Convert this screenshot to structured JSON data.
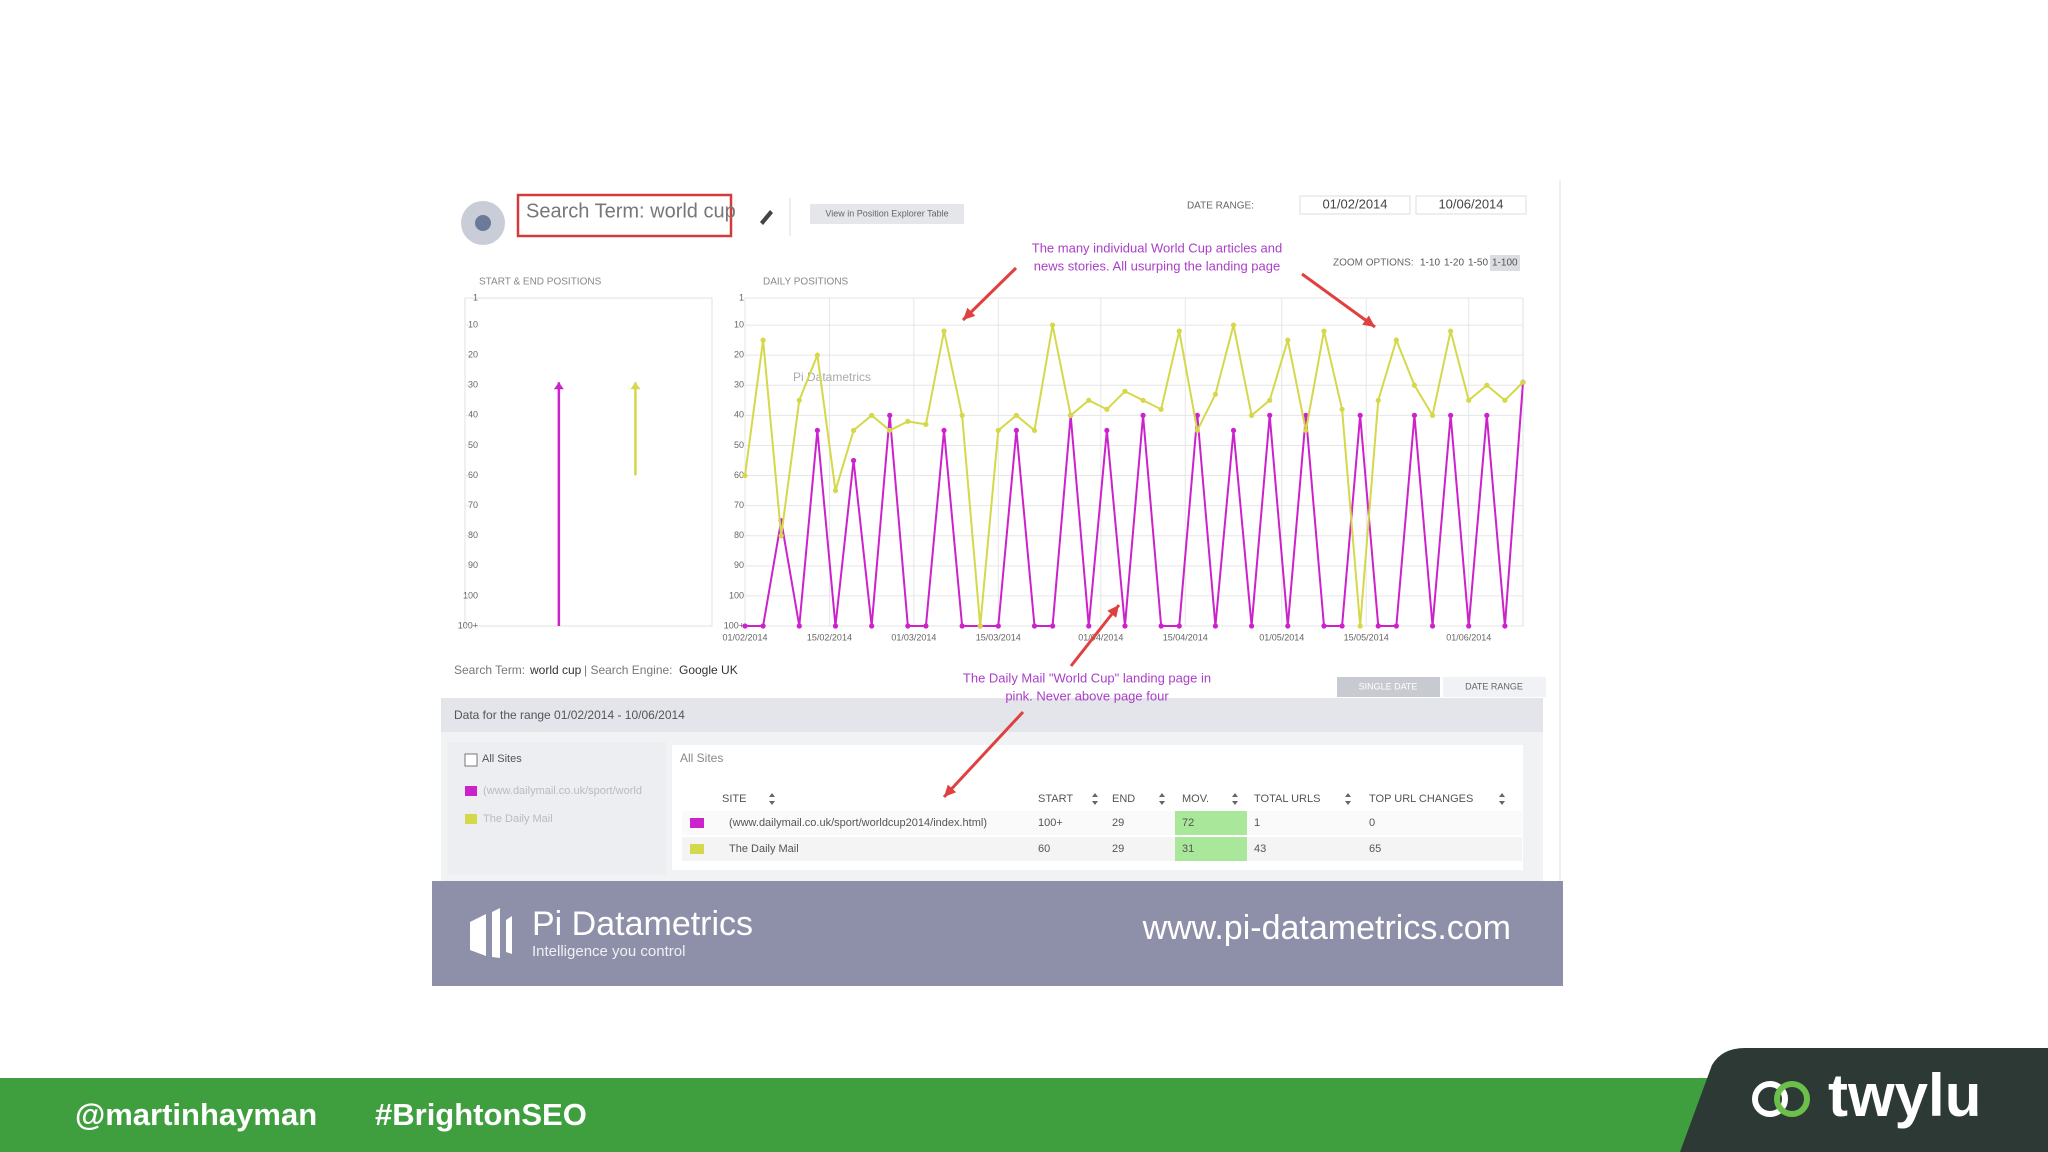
{
  "header": {
    "search_term": "Search Term: world cup",
    "table_button": "View in Position Explorer Table",
    "date_range_label": "DATE RANGE:",
    "date_from": "01/02/2014",
    "date_to": "10/06/2014",
    "zoom_label": "ZOOM OPTIONS:",
    "zoom_options": [
      "1-10",
      "1-20",
      "1-50",
      "1-100"
    ]
  },
  "chart_data": [
    {
      "type": "range",
      "title": "START & END POSITIONS",
      "ylim": [
        1,
        110
      ],
      "y_inverted": true,
      "yticks": [
        1,
        10,
        20,
        30,
        40,
        50,
        60,
        70,
        80,
        90,
        100,
        {
          "value": 110,
          "label": "100+"
        }
      ],
      "grid": false,
      "series": [
        {
          "color": "#cc22cc",
          "values": [
            110,
            29
          ]
        },
        {
          "color": "#d4d84a",
          "values": [
            60,
            29
          ]
        }
      ]
    },
    {
      "type": "line",
      "title": "DAILY POSITIONS",
      "watermark": "Pi Datametrics",
      "x": [
        "01/02/2014",
        "04/02/2014",
        "07/02/2014",
        "10/02/2014",
        "13/02/2014",
        "16/02/2014",
        "19/02/2014",
        "22/02/2014",
        "25/02/2014",
        "28/02/2014",
        "03/03/2014",
        "06/03/2014",
        "09/03/2014",
        "12/03/2014",
        "15/03/2014",
        "18/03/2014",
        "21/03/2014",
        "24/03/2014",
        "27/03/2014",
        "30/03/2014",
        "02/04/2014",
        "05/04/2014",
        "08/04/2014",
        "11/04/2014",
        "14/04/2014",
        "17/04/2014",
        "20/04/2014",
        "23/04/2014",
        "26/04/2014",
        "29/04/2014",
        "02/05/2014",
        "05/05/2014",
        "08/05/2014",
        "11/05/2014",
        "14/05/2014",
        "17/05/2014",
        "20/05/2014",
        "23/05/2014",
        "26/05/2014",
        "29/05/2014",
        "01/06/2014",
        "04/06/2014",
        "07/06/2014",
        "10/06/2014"
      ],
      "xlim": [
        "01/02/2014",
        "10/06/2014"
      ],
      "xticks": [
        "01/02/2014",
        "15/02/2014",
        "01/03/2014",
        "15/03/2014",
        "01/04/2014",
        "15/04/2014",
        "01/05/2014",
        "15/05/2014",
        "01/06/2014"
      ],
      "ylim": [
        1,
        110
      ],
      "y_inverted": true,
      "yticks": [
        1,
        10,
        20,
        30,
        40,
        50,
        60,
        70,
        80,
        90,
        100,
        {
          "value": 110,
          "label": "100+"
        }
      ],
      "grid": true,
      "series": [
        {
          "name": "(www.dailymail.co.uk/sport/world",
          "color": "#cc22cc",
          "values": [
            110,
            110,
            75,
            110,
            45,
            110,
            55,
            110,
            40,
            110,
            110,
            45,
            110,
            110,
            110,
            45,
            110,
            110,
            40,
            110,
            45,
            110,
            40,
            110,
            110,
            40,
            110,
            45,
            110,
            40,
            110,
            40,
            110,
            110,
            40,
            110,
            110,
            40,
            110,
            40,
            110,
            40,
            110,
            29
          ]
        },
        {
          "name": "The Daily Mail",
          "color": "#d4d84a",
          "values": [
            60,
            15,
            80,
            35,
            20,
            65,
            45,
            40,
            45,
            42,
            43,
            12,
            40,
            110,
            45,
            40,
            45,
            10,
            40,
            35,
            38,
            32,
            35,
            38,
            12,
            45,
            33,
            10,
            40,
            35,
            15,
            45,
            12,
            38,
            110,
            35,
            15,
            30,
            40,
            12,
            35,
            30,
            35,
            29
          ]
        }
      ]
    }
  ],
  "annotations": [
    {
      "lines": [
        "The many individual World Cup articles and",
        "news stories. All usurping the landing page"
      ]
    },
    {
      "lines": [
        "The Daily Mail \"World Cup\" landing page in",
        "pink. Never above page four"
      ]
    }
  ],
  "info": {
    "term_label": "Search Term:",
    "term": "world cup",
    "engine_label": "| Search Engine:",
    "engine": "Google UK",
    "single_date": "SINGLE DATE",
    "date_range": "DATE RANGE",
    "range_text": "Data for the range 01/02/2014 - 10/06/2014"
  },
  "sites_panel": {
    "all_sites": "All Sites",
    "heading": "All Sites"
  },
  "table": {
    "columns": [
      "SITE",
      "START",
      "END",
      "MOV.",
      "TOTAL URLS",
      "TOP URL CHANGES"
    ],
    "rows": [
      [
        "(www.dailymail.co.uk/sport/worldcup2014/index.html)",
        "100+",
        "29",
        "72",
        "1",
        "0"
      ],
      [
        "The Daily Mail",
        "60",
        "29",
        "31",
        "43",
        "65"
      ]
    ]
  },
  "footer": {
    "brand": "Pi Datametrics",
    "tagline": "Intelligence you control",
    "url": "www.pi-datametrics.com"
  },
  "social": {
    "handle": "@martinhayman",
    "hashtag": "#BrightonSEO",
    "logo": "twylu"
  }
}
